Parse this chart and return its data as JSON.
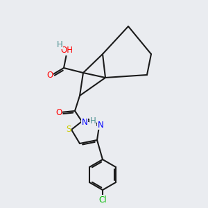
{
  "background_color": "#eaecf0",
  "bond_color": "#1a1a1a",
  "bond_lw": 1.5,
  "colors": {
    "O": "#ff0000",
    "N": "#0000ff",
    "S": "#cccc00",
    "Cl": "#00bb00",
    "H": "#4a9090",
    "C": "#1a1a1a"
  },
  "figsize": [
    3.0,
    3.0
  ],
  "dpi": 100
}
